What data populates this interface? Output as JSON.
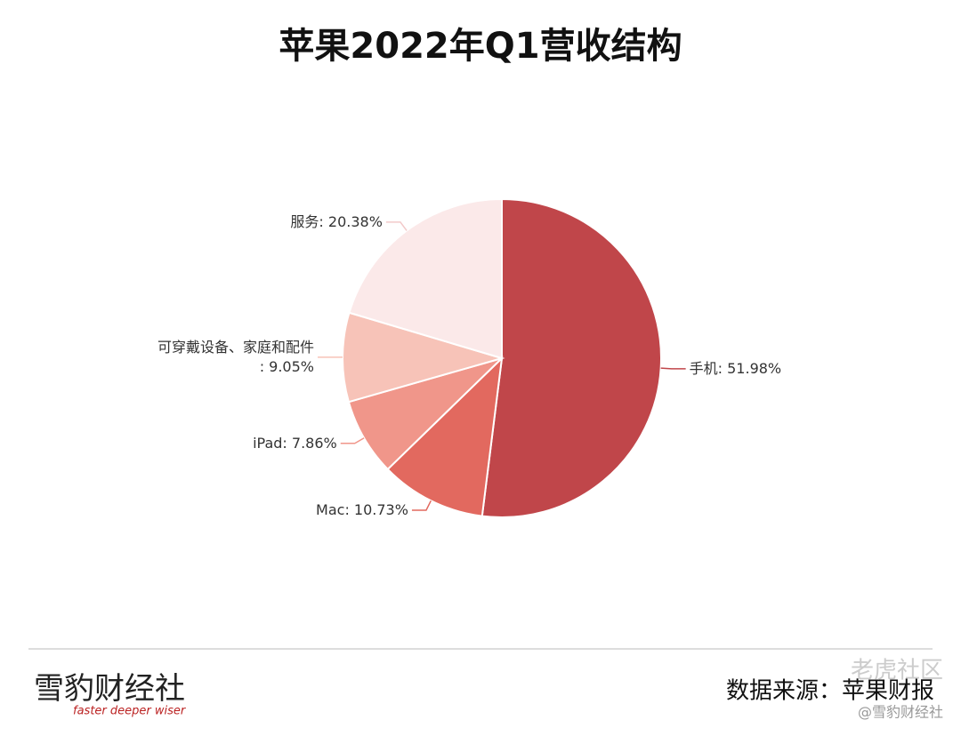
{
  "chart_data": {
    "type": "pie",
    "title": "苹果2022年Q1营收结构",
    "categories": [
      "手机",
      "Mac",
      "iPad",
      "可穿戴设备、家庭和配件",
      "服务"
    ],
    "values": [
      51.98,
      10.73,
      7.86,
      9.05,
      20.38
    ],
    "value_labels": [
      ": 51.98%",
      ": 10.73%",
      ": 7.86%",
      ": 9.05%",
      ": 20.38%"
    ],
    "colors": [
      "#c0464a",
      "#e2695f",
      "#f0968a",
      "#f7c3b8",
      "#fbe9e9"
    ],
    "source": "数据来源：苹果财报"
  },
  "footer": {
    "brand": "雪豹财经社",
    "slogan": "faster deeper wiser",
    "watermark": "老虎社区",
    "handle": "@雪豹财经社"
  }
}
